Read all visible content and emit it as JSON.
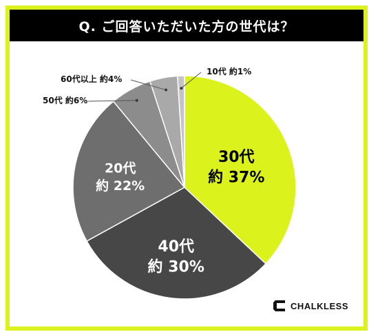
{
  "chart_data": {
    "type": "pie",
    "title": "Q. ご回答いただいた方の世代は？",
    "categories": [
      "30代",
      "40代",
      "20代",
      "50代",
      "60代以上",
      "10代"
    ],
    "values": [
      37,
      30,
      22,
      6,
      4,
      1
    ],
    "value_prefix": "約",
    "value_suffix": "%",
    "colors": [
      "#dcf21c",
      "#474747",
      "#6e6e6e",
      "#8c8c8c",
      "#a9a9a9",
      "#c4c4c4"
    ],
    "label_colors": [
      "#000000",
      "#ffffff",
      "#ffffff",
      "#000000",
      "#000000",
      "#000000"
    ],
    "callouts": [
      "50代 約6%",
      "60代以上 約4%",
      "10代 約1%"
    ]
  },
  "brand": {
    "name": "CHALKLESS",
    "color": "#111111"
  },
  "frame": {
    "accent": "#dcf21c",
    "title_bg": "#000000"
  }
}
